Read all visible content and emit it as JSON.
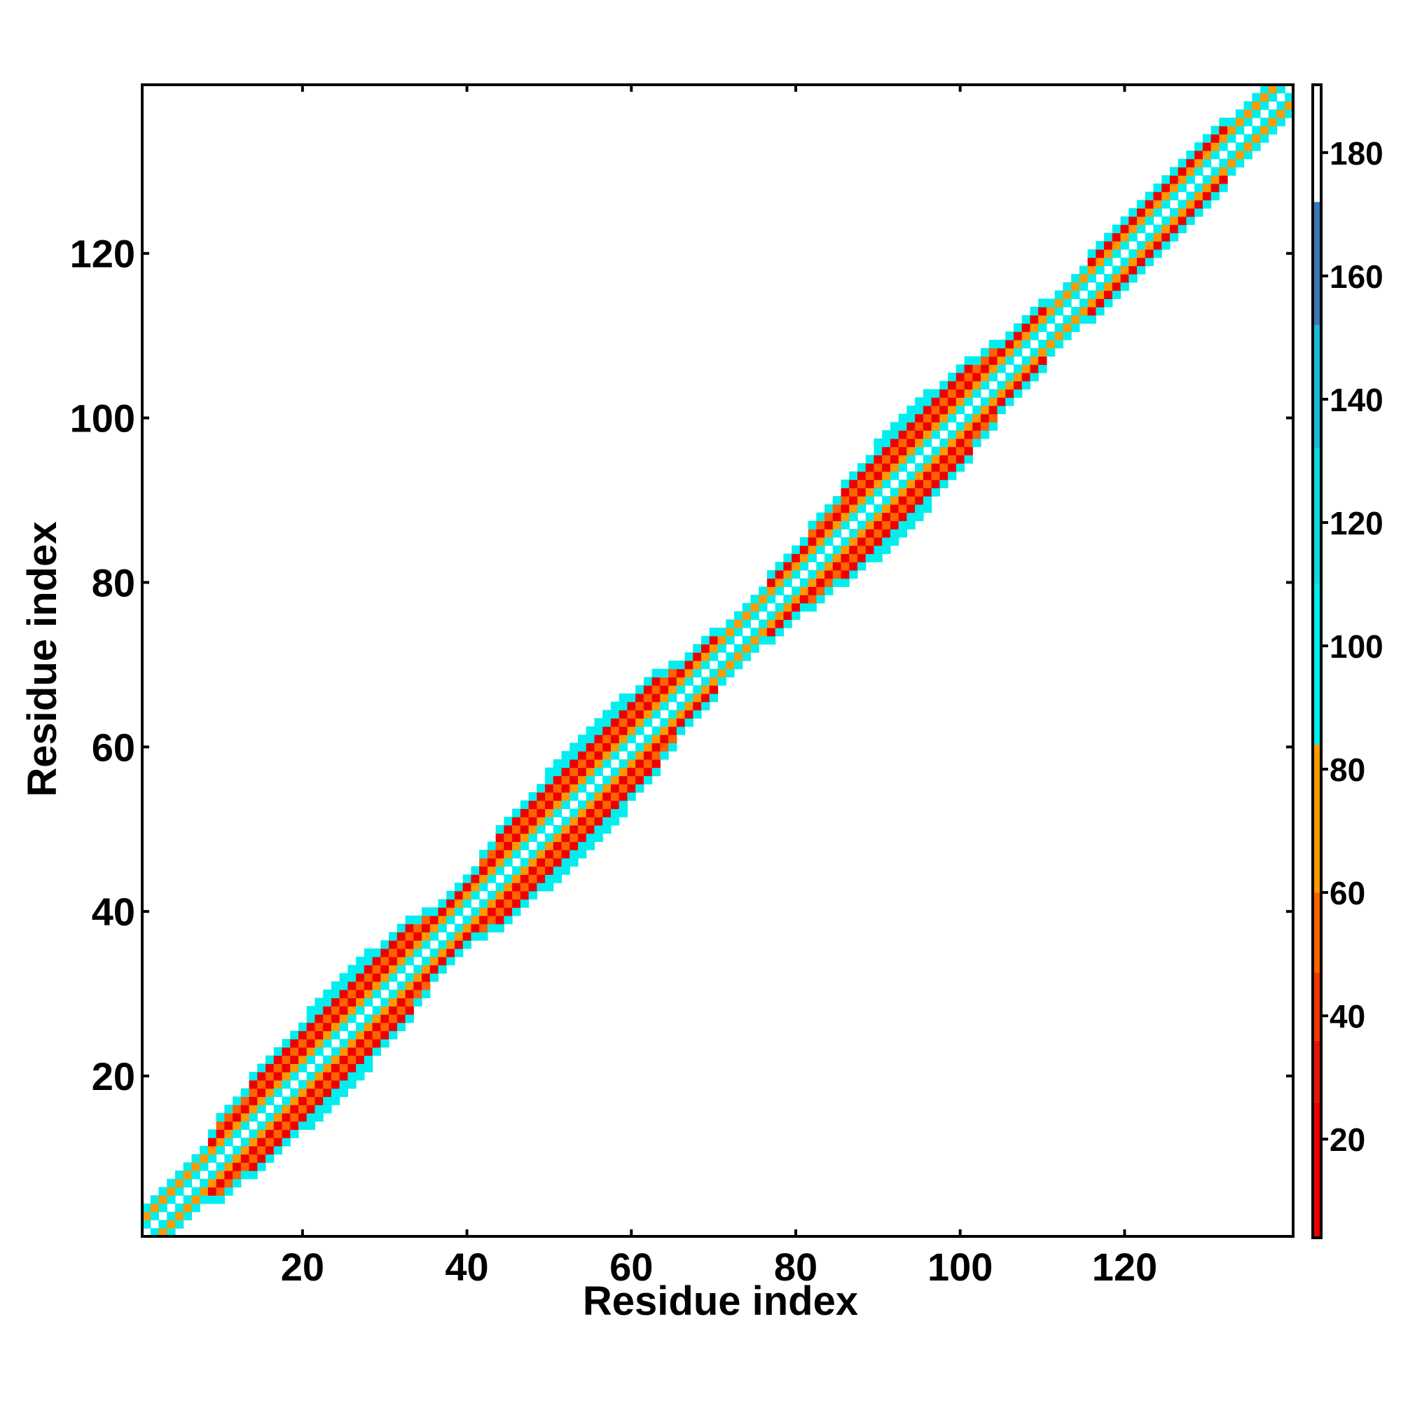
{
  "chart_data": {
    "type": "heatmap",
    "title": "",
    "xlabel": "Residue index",
    "ylabel": "Residue index",
    "xlim": [
      0.5,
      140.5
    ],
    "ylim": [
      0.5,
      140.5
    ],
    "x_ticks": [
      20,
      40,
      60,
      80,
      100,
      120
    ],
    "y_ticks": [
      20,
      40,
      60,
      80,
      100,
      120
    ],
    "grid": false,
    "colorbar": {
      "range": [
        4,
        191
      ],
      "ticks": [
        20,
        40,
        60,
        80,
        100,
        120,
        140,
        160,
        180
      ],
      "bands": [
        {
          "from": 4,
          "to": 26,
          "color": "#ee0000"
        },
        {
          "from": 26,
          "to": 36,
          "color": "#e81500"
        },
        {
          "from": 36,
          "to": 47,
          "color": "#f03800"
        },
        {
          "from": 47,
          "to": 60,
          "color": "#ff6200"
        },
        {
          "from": 60,
          "to": 84,
          "color": "#ff9900"
        },
        {
          "from": 84,
          "to": 110,
          "color": "#00eeee"
        },
        {
          "from": 110,
          "to": 132,
          "color": "#10d8e0"
        },
        {
          "from": 132,
          "to": 152,
          "color": "#1ab8d8"
        },
        {
          "from": 152,
          "to": 172,
          "color": "#3a78b8"
        },
        {
          "from": 172,
          "to": 191,
          "color": "#ffffff"
        }
      ]
    },
    "band_halfwidth": [
      {
        "x": 1,
        "w": 3
      },
      {
        "x": 8,
        "w": 3
      },
      {
        "x": 10,
        "w": 5
      },
      {
        "x": 24,
        "w": 7
      },
      {
        "x": 32,
        "w": 6
      },
      {
        "x": 36,
        "w": 4
      },
      {
        "x": 41,
        "w": 4
      },
      {
        "x": 44,
        "w": 6
      },
      {
        "x": 56,
        "w": 7
      },
      {
        "x": 62,
        "w": 6
      },
      {
        "x": 66,
        "w": 4
      },
      {
        "x": 74,
        "w": 3
      },
      {
        "x": 80,
        "w": 4
      },
      {
        "x": 84,
        "w": 5
      },
      {
        "x": 92,
        "w": 7
      },
      {
        "x": 100,
        "w": 6
      },
      {
        "x": 106,
        "w": 4
      },
      {
        "x": 114,
        "w": 3
      },
      {
        "x": 118,
        "w": 4
      },
      {
        "x": 124,
        "w": 4
      },
      {
        "x": 140,
        "w": 3
      }
    ],
    "cell_values_by_offset": [
      {
        "offset": 0,
        "value": 185
      },
      {
        "offset": 1,
        "value": 90
      },
      {
        "offset": 2,
        "value": 75
      },
      {
        "offset": 3,
        "value": 15
      },
      {
        "offset": 4,
        "value": 50
      },
      {
        "offset": 5,
        "value": 20
      },
      {
        "offset": 6,
        "value": 90
      },
      {
        "offset": 7,
        "value": 95
      }
    ]
  }
}
